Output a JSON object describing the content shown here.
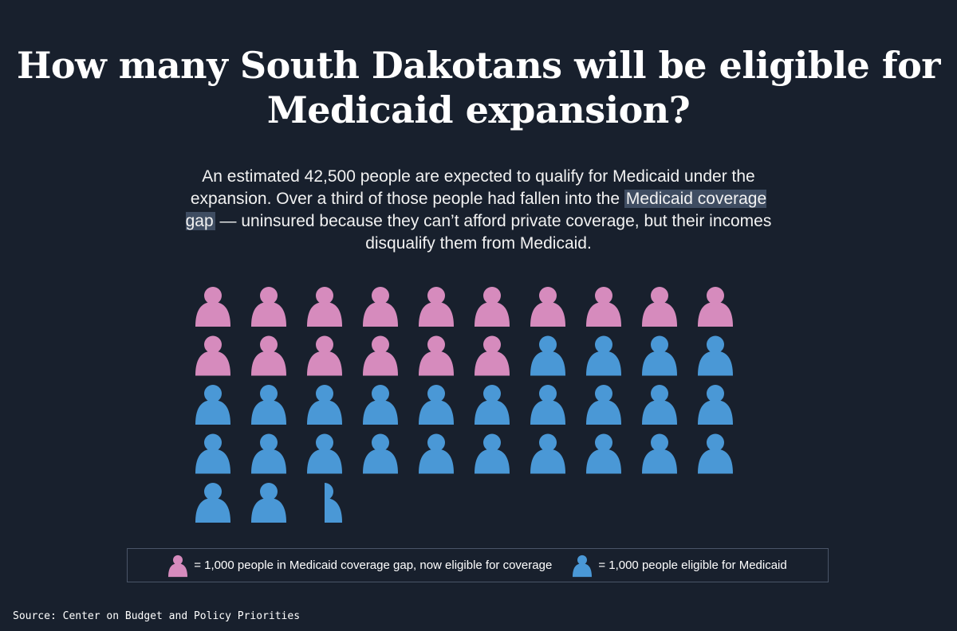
{
  "title": "How many South Dakotans will be eligible for Medicaid expansion?",
  "subtitle": {
    "before": "An estimated 42,500 people are expected to qualify for Medicaid under the expansion. Over a third of those people had fallen into the",
    "highlight": "Medicaid coverage gap",
    "after": "— uninsured because they can’t afford private coverage, but their incomes disqualify them from Medicaid."
  },
  "colors": {
    "background": "#18202d",
    "gap": "#d68bbd",
    "eligible": "#4a98d6",
    "highlight": "#3f4d62"
  },
  "chart_data": {
    "type": "pictogram",
    "unit_people": 1000,
    "columns": 10,
    "series": [
      {
        "name": "= 1,000 people in Medicaid coverage gap, now eligible for coverage",
        "value": 16,
        "color": "#d68bbd"
      },
      {
        "name": "= 1,000 people eligible for Medicaid",
        "value": 26.5,
        "color": "#4a98d6"
      }
    ],
    "total": 42.5
  },
  "legend": {
    "gap_label": "= 1,000 people in Medicaid coverage gap, now eligible for coverage",
    "eligible_label": "= 1,000 people eligible for Medicaid"
  },
  "source": "Source: Center on Budget and Policy Priorities"
}
